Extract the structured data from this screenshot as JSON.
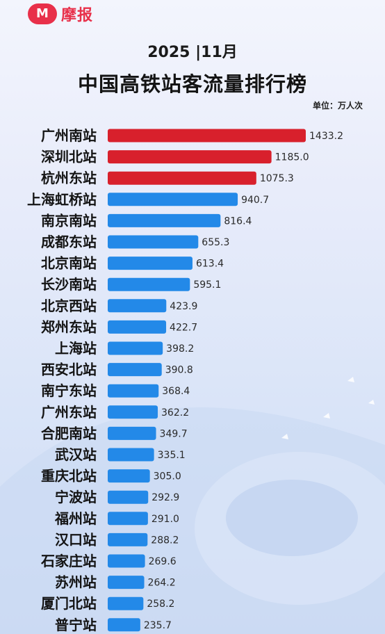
{
  "header": {
    "logo_mark": "M",
    "logo_text": "摩报",
    "date": "2025 |11月",
    "title": "中国高铁站客流量排行榜",
    "unit": "单位：万人次"
  },
  "colors": {
    "top3": "#d8202c",
    "others": "#2389e8",
    "brand": "#e8304a"
  },
  "chart_data": {
    "type": "bar",
    "orientation": "horizontal",
    "categories": [
      "广州南站",
      "深圳北站",
      "杭州东站",
      "上海虹桥站",
      "南京南站",
      "成都东站",
      "北京南站",
      "长沙南站",
      "北京西站",
      "郑州东站",
      "上海站",
      "西安北站",
      "南宁东站",
      "广州东站",
      "合肥南站",
      "武汉站",
      "重庆北站",
      "宁波站",
      "福州站",
      "汉口站",
      "石家庄站",
      "苏州站",
      "厦门北站",
      "普宁站"
    ],
    "values": [
      1433.2,
      1185.0,
      1075.3,
      940.7,
      816.4,
      655.3,
      613.4,
      595.1,
      423.9,
      422.7,
      398.2,
      390.8,
      368.4,
      362.2,
      349.7,
      335.1,
      305.0,
      292.9,
      291.0,
      288.2,
      269.6,
      264.2,
      258.2,
      235.7
    ],
    "value_labels": [
      "1433.2",
      "1185.0",
      "1075.3",
      "940.7",
      "816.4",
      "655.3",
      "613.4",
      "595.1",
      "423.9",
      "422.7",
      "398.2",
      "390.8",
      "368.4",
      "362.2",
      "349.7",
      "335.1",
      "305.0",
      "292.9",
      "291.0",
      "288.2",
      "269.6",
      "264.2",
      "258.2",
      "235.7"
    ],
    "highlight_top": 3,
    "title": "中国高铁站客流量排行榜",
    "xlabel": "",
    "ylabel": "",
    "unit": "万人次",
    "xlim": [
      0,
      1433.2
    ],
    "grid": false,
    "legend": "none"
  }
}
